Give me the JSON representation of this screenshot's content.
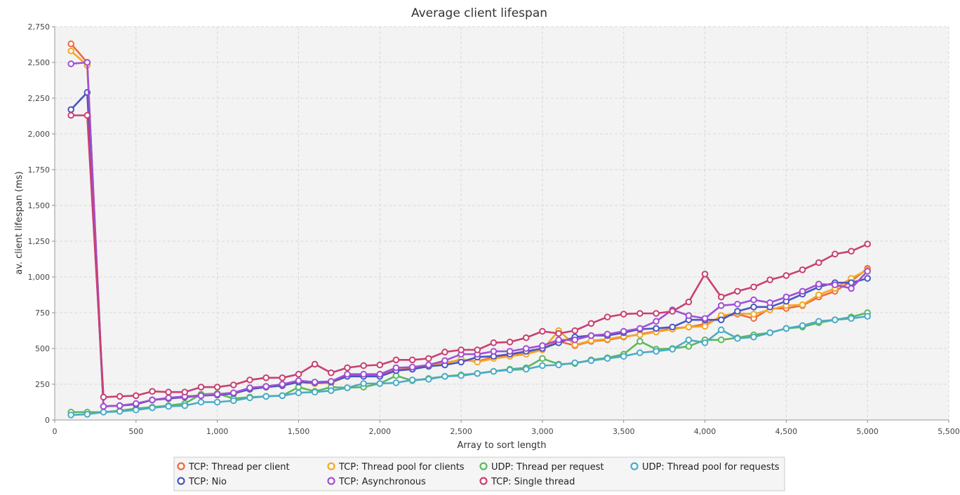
{
  "chart_data": {
    "type": "line",
    "title": "Average client lifespan",
    "xlabel": "Array to sort length",
    "ylabel": "av. client lifespan (ms)",
    "xlim": [
      0,
      5500
    ],
    "ylim": [
      0,
      2750
    ],
    "x_ticks": [
      "0",
      "500",
      "1,000",
      "1,500",
      "2,000",
      "2,500",
      "3,000",
      "3,500",
      "4,000",
      "4,500",
      "5,000",
      "5,500"
    ],
    "x_tick_values": [
      0,
      500,
      1000,
      1500,
      2000,
      2500,
      3000,
      3500,
      4000,
      4500,
      5000,
      5500
    ],
    "y_ticks": [
      "0",
      "250",
      "500",
      "750",
      "1,000",
      "1,250",
      "1,500",
      "1,750",
      "2,000",
      "2,250",
      "2,500",
      "2,750"
    ],
    "y_tick_values": [
      0,
      250,
      500,
      750,
      1000,
      1250,
      1500,
      1750,
      2000,
      2250,
      2500,
      2750
    ],
    "grid": true,
    "legend_position": "bottom",
    "x": [
      100,
      200,
      300,
      400,
      500,
      600,
      700,
      800,
      900,
      1000,
      1100,
      1200,
      1300,
      1400,
      1500,
      1600,
      1700,
      1800,
      1900,
      2000,
      2100,
      2200,
      2300,
      2400,
      2500,
      2600,
      2700,
      2800,
      2900,
      3000,
      3100,
      3200,
      3300,
      3400,
      3500,
      3600,
      3700,
      3800,
      3900,
      4000,
      4100,
      4200,
      4300,
      4400,
      4500,
      4600,
      4700,
      4800,
      4900,
      5000
    ],
    "series": [
      {
        "name": "TCP: Thread per client",
        "color": "#ee6a3c",
        "values": [
          2630,
          2500,
          95,
          100,
          110,
          140,
          150,
          160,
          175,
          180,
          190,
          220,
          230,
          240,
          270,
          260,
          265,
          310,
          310,
          310,
          350,
          360,
          380,
          400,
          420,
          410,
          440,
          450,
          470,
          500,
          550,
          520,
          550,
          560,
          580,
          600,
          620,
          640,
          650,
          670,
          720,
          740,
          710,
          780,
          780,
          800,
          860,
          900,
          970,
          1060
        ]
      },
      {
        "name": "TCP: Thread pool for clients",
        "color": "#f5a623",
        "values": [
          2580,
          2480,
          95,
          100,
          110,
          140,
          150,
          160,
          170,
          175,
          185,
          215,
          230,
          240,
          265,
          255,
          260,
          305,
          305,
          305,
          345,
          355,
          375,
          395,
          425,
          405,
          430,
          445,
          460,
          490,
          625,
          525,
          555,
          565,
          585,
          595,
          615,
          635,
          650,
          655,
          730,
          745,
          740,
          770,
          800,
          805,
          875,
          920,
          990,
          1050
        ]
      },
      {
        "name": "UDP: Thread per request",
        "color": "#5cb85c",
        "values": [
          55,
          55,
          55,
          65,
          80,
          90,
          100,
          115,
          180,
          185,
          150,
          160,
          165,
          170,
          230,
          200,
          230,
          225,
          230,
          255,
          310,
          275,
          290,
          305,
          315,
          325,
          340,
          355,
          365,
          430,
          390,
          395,
          420,
          435,
          460,
          550,
          495,
          500,
          515,
          560,
          560,
          575,
          595,
          610,
          640,
          650,
          680,
          700,
          720,
          750
        ]
      },
      {
        "name": "UDP: Thread pool for requests",
        "color": "#4aabc7",
        "values": [
          35,
          40,
          55,
          60,
          70,
          85,
          95,
          100,
          125,
          125,
          135,
          155,
          165,
          170,
          190,
          195,
          205,
          225,
          255,
          255,
          260,
          280,
          285,
          305,
          310,
          325,
          340,
          350,
          355,
          380,
          385,
          400,
          415,
          430,
          445,
          470,
          480,
          495,
          560,
          540,
          630,
          570,
          580,
          610,
          640,
          660,
          690,
          700,
          710,
          725
        ]
      },
      {
        "name": "TCP: Nio",
        "color": "#4a55c2",
        "values": [
          2170,
          2290,
          95,
          100,
          110,
          140,
          150,
          160,
          170,
          175,
          185,
          215,
          230,
          240,
          265,
          260,
          265,
          305,
          305,
          305,
          345,
          355,
          375,
          385,
          405,
          440,
          445,
          460,
          480,
          500,
          540,
          580,
          590,
          590,
          610,
          635,
          640,
          650,
          700,
          700,
          700,
          760,
          790,
          790,
          830,
          880,
          930,
          960,
          960,
          990
        ]
      },
      {
        "name": "TCP: Asynchronous",
        "color": "#a04fd6",
        "values": [
          2490,
          2500,
          95,
          100,
          115,
          140,
          155,
          165,
          170,
          180,
          190,
          225,
          235,
          250,
          275,
          265,
          270,
          320,
          320,
          320,
          365,
          370,
          385,
          415,
          460,
          460,
          480,
          480,
          500,
          520,
          560,
          560,
          590,
          600,
          620,
          640,
          690,
          770,
          730,
          710,
          800,
          810,
          840,
          820,
          860,
          900,
          950,
          945,
          920,
          1040
        ]
      },
      {
        "name": "TCP: Single thread",
        "color": "#c94070",
        "values": [
          2130,
          2130,
          160,
          165,
          170,
          200,
          195,
          195,
          230,
          230,
          245,
          280,
          295,
          295,
          320,
          390,
          330,
          365,
          380,
          385,
          420,
          420,
          430,
          475,
          490,
          490,
          540,
          545,
          575,
          620,
          605,
          625,
          675,
          720,
          740,
          745,
          745,
          760,
          825,
          1020,
          860,
          900,
          930,
          980,
          1010,
          1050,
          1100,
          1160,
          1180,
          1230
        ]
      }
    ]
  }
}
